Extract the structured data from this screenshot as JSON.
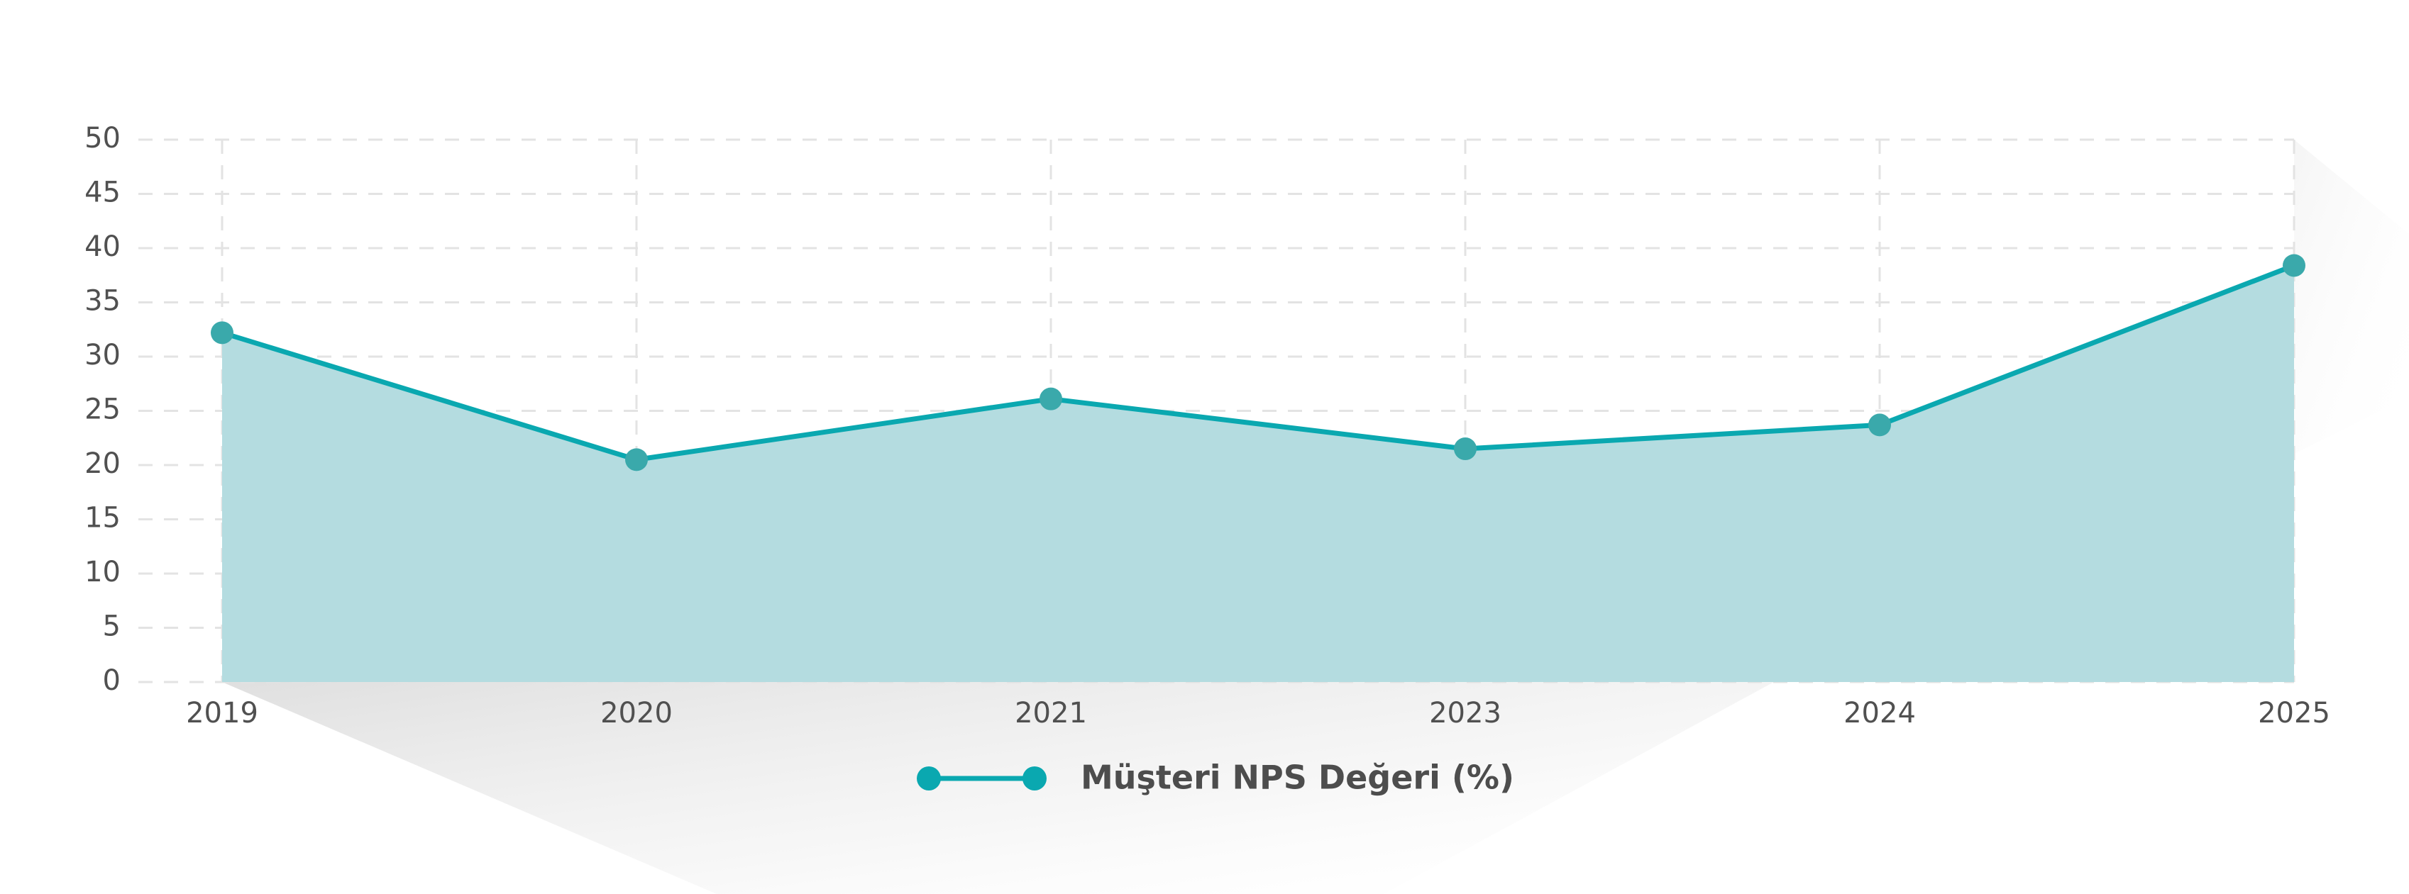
{
  "chart_data": {
    "type": "area",
    "title": "",
    "xlabel": "",
    "ylabel": "",
    "categories": [
      "2019",
      "2020",
      "2021",
      "2023",
      "2024",
      "2025"
    ],
    "series": [
      {
        "name": "Müşteri NPS Değeri (%)",
        "values": [
          32.2,
          20.5,
          26.1,
          21.5,
          23.7,
          38.4
        ],
        "color": "#0aa8b0",
        "fill": "#b2dbdf",
        "marker_color": "#3aa9ab"
      }
    ],
    "ylim": [
      0,
      50
    ],
    "yticks": [
      0,
      5,
      10,
      15,
      20,
      25,
      30,
      35,
      40,
      45,
      50
    ],
    "grid": true,
    "legend_position": "bottom"
  },
  "legend": {
    "label": "Müşteri NPS Değeri (%)"
  }
}
